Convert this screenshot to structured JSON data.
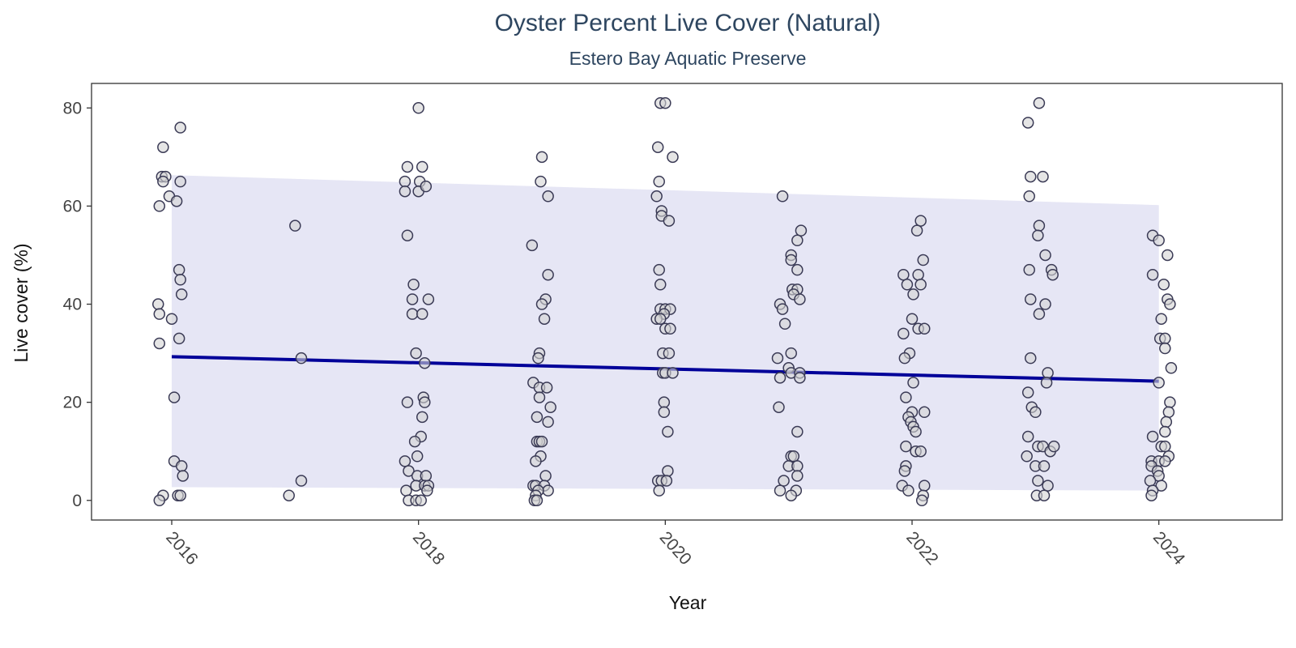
{
  "colors": {
    "band": "#e6e6f5",
    "trend_line": "#000099",
    "point_fill": "#d3d3d3",
    "point_stroke": "#3a3a55",
    "frame": "#333333",
    "title": "#2e4660"
  },
  "chart_data": {
    "type": "scatter",
    "title": "Oyster Percent Live Cover (Natural)",
    "subtitle": "Estero Bay Aquatic Preserve",
    "xlabel": "Year",
    "ylabel": "Live cover (%)",
    "xlim": [
      2015.35,
      2025.0
    ],
    "ylim": [
      -4,
      85
    ],
    "x_ticks": [
      2016,
      2018,
      2020,
      2022,
      2024
    ],
    "y_ticks": [
      0,
      20,
      40,
      60,
      80
    ],
    "grid": false,
    "legend": "none",
    "trend_line": {
      "x": [
        2016,
        2024
      ],
      "y": [
        29.3,
        24.3
      ]
    },
    "confidence_band": {
      "x": [
        2016,
        2024
      ],
      "upper": [
        66.3,
        60.2
      ],
      "lower": [
        2.7,
        2.0
      ]
    },
    "points": [
      {
        "x": 2015.93,
        "y": 72
      },
      {
        "x": 2015.92,
        "y": 66
      },
      {
        "x": 2015.95,
        "y": 66
      },
      {
        "x": 2015.93,
        "y": 65
      },
      {
        "x": 2015.98,
        "y": 62
      },
      {
        "x": 2016.04,
        "y": 61
      },
      {
        "x": 2015.9,
        "y": 60
      },
      {
        "x": 2016.07,
        "y": 65
      },
      {
        "x": 2016.07,
        "y": 76
      },
      {
        "x": 2016.06,
        "y": 47
      },
      {
        "x": 2016.07,
        "y": 45
      },
      {
        "x": 2016.08,
        "y": 42
      },
      {
        "x": 2015.89,
        "y": 40
      },
      {
        "x": 2015.9,
        "y": 38
      },
      {
        "x": 2016.0,
        "y": 37
      },
      {
        "x": 2016.06,
        "y": 33
      },
      {
        "x": 2015.9,
        "y": 32
      },
      {
        "x": 2016.02,
        "y": 21
      },
      {
        "x": 2016.02,
        "y": 8
      },
      {
        "x": 2016.08,
        "y": 7
      },
      {
        "x": 2016.09,
        "y": 5
      },
      {
        "x": 2016.05,
        "y": 1
      },
      {
        "x": 2016.07,
        "y": 1
      },
      {
        "x": 2015.93,
        "y": 1
      },
      {
        "x": 2015.9,
        "y": 0
      },
      {
        "x": 2017.0,
        "y": 56
      },
      {
        "x": 2017.05,
        "y": 29
      },
      {
        "x": 2017.05,
        "y": 4
      },
      {
        "x": 2016.95,
        "y": 1
      },
      {
        "x": 2018.0,
        "y": 80
      },
      {
        "x": 2017.91,
        "y": 68
      },
      {
        "x": 2018.03,
        "y": 68
      },
      {
        "x": 2017.89,
        "y": 65
      },
      {
        "x": 2018.01,
        "y": 65
      },
      {
        "x": 2017.89,
        "y": 63
      },
      {
        "x": 2018.0,
        "y": 63
      },
      {
        "x": 2018.06,
        "y": 64
      },
      {
        "x": 2017.91,
        "y": 54
      },
      {
        "x": 2017.96,
        "y": 44
      },
      {
        "x": 2017.95,
        "y": 41
      },
      {
        "x": 2018.08,
        "y": 41
      },
      {
        "x": 2017.95,
        "y": 38
      },
      {
        "x": 2018.03,
        "y": 38
      },
      {
        "x": 2017.98,
        "y": 30
      },
      {
        "x": 2018.05,
        "y": 28
      },
      {
        "x": 2018.04,
        "y": 21
      },
      {
        "x": 2017.91,
        "y": 20
      },
      {
        "x": 2018.05,
        "y": 20
      },
      {
        "x": 2018.03,
        "y": 17
      },
      {
        "x": 2018.02,
        "y": 13
      },
      {
        "x": 2017.97,
        "y": 12
      },
      {
        "x": 2017.99,
        "y": 9
      },
      {
        "x": 2017.89,
        "y": 8
      },
      {
        "x": 2017.92,
        "y": 6
      },
      {
        "x": 2017.99,
        "y": 5
      },
      {
        "x": 2018.06,
        "y": 5
      },
      {
        "x": 2017.98,
        "y": 3
      },
      {
        "x": 2018.05,
        "y": 3
      },
      {
        "x": 2018.08,
        "y": 3
      },
      {
        "x": 2017.9,
        "y": 2
      },
      {
        "x": 2018.07,
        "y": 2
      },
      {
        "x": 2017.92,
        "y": 0
      },
      {
        "x": 2017.98,
        "y": 0
      },
      {
        "x": 2018.02,
        "y": 0
      },
      {
        "x": 2019.0,
        "y": 70
      },
      {
        "x": 2018.99,
        "y": 65
      },
      {
        "x": 2019.05,
        "y": 62
      },
      {
        "x": 2018.92,
        "y": 52
      },
      {
        "x": 2019.05,
        "y": 46
      },
      {
        "x": 2019.03,
        "y": 41
      },
      {
        "x": 2019.0,
        "y": 40
      },
      {
        "x": 2019.02,
        "y": 37
      },
      {
        "x": 2018.98,
        "y": 30
      },
      {
        "x": 2018.97,
        "y": 29
      },
      {
        "x": 2018.93,
        "y": 24
      },
      {
        "x": 2018.98,
        "y": 23
      },
      {
        "x": 2019.04,
        "y": 23
      },
      {
        "x": 2018.98,
        "y": 21
      },
      {
        "x": 2019.07,
        "y": 19
      },
      {
        "x": 2018.96,
        "y": 17
      },
      {
        "x": 2019.05,
        "y": 16
      },
      {
        "x": 2018.96,
        "y": 12
      },
      {
        "x": 2018.98,
        "y": 12
      },
      {
        "x": 2019.0,
        "y": 12
      },
      {
        "x": 2018.99,
        "y": 9
      },
      {
        "x": 2018.95,
        "y": 8
      },
      {
        "x": 2019.03,
        "y": 5
      },
      {
        "x": 2018.93,
        "y": 3
      },
      {
        "x": 2018.95,
        "y": 3
      },
      {
        "x": 2019.02,
        "y": 3
      },
      {
        "x": 2019.05,
        "y": 2
      },
      {
        "x": 2018.97,
        "y": 2
      },
      {
        "x": 2018.95,
        "y": 1
      },
      {
        "x": 2018.94,
        "y": 0
      },
      {
        "x": 2018.96,
        "y": 0
      },
      {
        "x": 2019.96,
        "y": 81
      },
      {
        "x": 2020.0,
        "y": 81
      },
      {
        "x": 2019.94,
        "y": 72
      },
      {
        "x": 2020.06,
        "y": 70
      },
      {
        "x": 2019.95,
        "y": 65
      },
      {
        "x": 2019.93,
        "y": 62
      },
      {
        "x": 2019.97,
        "y": 59
      },
      {
        "x": 2019.97,
        "y": 58
      },
      {
        "x": 2020.03,
        "y": 57
      },
      {
        "x": 2019.95,
        "y": 47
      },
      {
        "x": 2019.96,
        "y": 44
      },
      {
        "x": 2019.96,
        "y": 39
      },
      {
        "x": 2020.0,
        "y": 39
      },
      {
        "x": 2020.04,
        "y": 39
      },
      {
        "x": 2019.99,
        "y": 38
      },
      {
        "x": 2019.93,
        "y": 37
      },
      {
        "x": 2019.96,
        "y": 37
      },
      {
        "x": 2020.0,
        "y": 35
      },
      {
        "x": 2020.04,
        "y": 35
      },
      {
        "x": 2019.98,
        "y": 30
      },
      {
        "x": 2020.03,
        "y": 30
      },
      {
        "x": 2019.98,
        "y": 26
      },
      {
        "x": 2020.0,
        "y": 26
      },
      {
        "x": 2020.06,
        "y": 26
      },
      {
        "x": 2019.99,
        "y": 20
      },
      {
        "x": 2019.99,
        "y": 18
      },
      {
        "x": 2020.02,
        "y": 14
      },
      {
        "x": 2020.02,
        "y": 6
      },
      {
        "x": 2019.94,
        "y": 4
      },
      {
        "x": 2019.97,
        "y": 4
      },
      {
        "x": 2020.01,
        "y": 4
      },
      {
        "x": 2019.95,
        "y": 2
      },
      {
        "x": 2020.95,
        "y": 62
      },
      {
        "x": 2021.1,
        "y": 55
      },
      {
        "x": 2021.07,
        "y": 53
      },
      {
        "x": 2021.02,
        "y": 50
      },
      {
        "x": 2021.02,
        "y": 49
      },
      {
        "x": 2021.07,
        "y": 47
      },
      {
        "x": 2021.03,
        "y": 43
      },
      {
        "x": 2021.07,
        "y": 43
      },
      {
        "x": 2021.04,
        "y": 42
      },
      {
        "x": 2021.09,
        "y": 41
      },
      {
        "x": 2020.93,
        "y": 40
      },
      {
        "x": 2020.95,
        "y": 39
      },
      {
        "x": 2020.97,
        "y": 36
      },
      {
        "x": 2021.02,
        "y": 30
      },
      {
        "x": 2020.91,
        "y": 29
      },
      {
        "x": 2021.0,
        "y": 27
      },
      {
        "x": 2021.02,
        "y": 26
      },
      {
        "x": 2021.09,
        "y": 26
      },
      {
        "x": 2020.93,
        "y": 25
      },
      {
        "x": 2021.09,
        "y": 25
      },
      {
        "x": 2020.92,
        "y": 19
      },
      {
        "x": 2021.07,
        "y": 14
      },
      {
        "x": 2021.02,
        "y": 9
      },
      {
        "x": 2021.04,
        "y": 9
      },
      {
        "x": 2021.0,
        "y": 7
      },
      {
        "x": 2021.07,
        "y": 7
      },
      {
        "x": 2021.07,
        "y": 5
      },
      {
        "x": 2020.96,
        "y": 4
      },
      {
        "x": 2020.93,
        "y": 2
      },
      {
        "x": 2021.06,
        "y": 2
      },
      {
        "x": 2021.02,
        "y": 1
      },
      {
        "x": 2022.07,
        "y": 57
      },
      {
        "x": 2022.04,
        "y": 55
      },
      {
        "x": 2022.09,
        "y": 49
      },
      {
        "x": 2021.93,
        "y": 46
      },
      {
        "x": 2022.05,
        "y": 46
      },
      {
        "x": 2021.96,
        "y": 44
      },
      {
        "x": 2022.07,
        "y": 44
      },
      {
        "x": 2022.01,
        "y": 42
      },
      {
        "x": 2022.0,
        "y": 37
      },
      {
        "x": 2022.05,
        "y": 35
      },
      {
        "x": 2022.1,
        "y": 35
      },
      {
        "x": 2021.93,
        "y": 34
      },
      {
        "x": 2021.98,
        "y": 30
      },
      {
        "x": 2021.94,
        "y": 29
      },
      {
        "x": 2022.01,
        "y": 24
      },
      {
        "x": 2021.95,
        "y": 21
      },
      {
        "x": 2022.0,
        "y": 18
      },
      {
        "x": 2022.1,
        "y": 18
      },
      {
        "x": 2021.97,
        "y": 17
      },
      {
        "x": 2021.99,
        "y": 16
      },
      {
        "x": 2022.01,
        "y": 15
      },
      {
        "x": 2022.03,
        "y": 14
      },
      {
        "x": 2021.95,
        "y": 11
      },
      {
        "x": 2022.03,
        "y": 10
      },
      {
        "x": 2022.07,
        "y": 10
      },
      {
        "x": 2021.95,
        "y": 7
      },
      {
        "x": 2021.94,
        "y": 6
      },
      {
        "x": 2021.92,
        "y": 3
      },
      {
        "x": 2022.1,
        "y": 3
      },
      {
        "x": 2021.97,
        "y": 2
      },
      {
        "x": 2022.09,
        "y": 1
      },
      {
        "x": 2022.08,
        "y": 0
      },
      {
        "x": 2023.03,
        "y": 81
      },
      {
        "x": 2022.94,
        "y": 77
      },
      {
        "x": 2022.96,
        "y": 66
      },
      {
        "x": 2023.06,
        "y": 66
      },
      {
        "x": 2022.95,
        "y": 62
      },
      {
        "x": 2023.03,
        "y": 56
      },
      {
        "x": 2023.02,
        "y": 54
      },
      {
        "x": 2023.08,
        "y": 50
      },
      {
        "x": 2022.95,
        "y": 47
      },
      {
        "x": 2023.13,
        "y": 47
      },
      {
        "x": 2023.14,
        "y": 46
      },
      {
        "x": 2022.96,
        "y": 41
      },
      {
        "x": 2023.08,
        "y": 40
      },
      {
        "x": 2023.03,
        "y": 38
      },
      {
        "x": 2022.96,
        "y": 29
      },
      {
        "x": 2023.1,
        "y": 26
      },
      {
        "x": 2023.09,
        "y": 24
      },
      {
        "x": 2022.94,
        "y": 22
      },
      {
        "x": 2022.97,
        "y": 19
      },
      {
        "x": 2023.0,
        "y": 18
      },
      {
        "x": 2022.94,
        "y": 13
      },
      {
        "x": 2023.02,
        "y": 11
      },
      {
        "x": 2023.06,
        "y": 11
      },
      {
        "x": 2023.12,
        "y": 10
      },
      {
        "x": 2023.15,
        "y": 11
      },
      {
        "x": 2022.93,
        "y": 9
      },
      {
        "x": 2023.0,
        "y": 7
      },
      {
        "x": 2023.07,
        "y": 7
      },
      {
        "x": 2023.02,
        "y": 4
      },
      {
        "x": 2023.1,
        "y": 3
      },
      {
        "x": 2023.01,
        "y": 1
      },
      {
        "x": 2023.07,
        "y": 1
      },
      {
        "x": 2023.95,
        "y": 54
      },
      {
        "x": 2024.0,
        "y": 53
      },
      {
        "x": 2024.07,
        "y": 50
      },
      {
        "x": 2023.95,
        "y": 46
      },
      {
        "x": 2024.04,
        "y": 44
      },
      {
        "x": 2024.07,
        "y": 41
      },
      {
        "x": 2024.09,
        "y": 40
      },
      {
        "x": 2024.02,
        "y": 37
      },
      {
        "x": 2024.01,
        "y": 33
      },
      {
        "x": 2024.05,
        "y": 33
      },
      {
        "x": 2024.05,
        "y": 31
      },
      {
        "x": 2024.1,
        "y": 27
      },
      {
        "x": 2024.0,
        "y": 24
      },
      {
        "x": 2024.09,
        "y": 20
      },
      {
        "x": 2024.08,
        "y": 18
      },
      {
        "x": 2024.06,
        "y": 16
      },
      {
        "x": 2024.05,
        "y": 14
      },
      {
        "x": 2023.95,
        "y": 13
      },
      {
        "x": 2024.02,
        "y": 11
      },
      {
        "x": 2024.05,
        "y": 11
      },
      {
        "x": 2024.08,
        "y": 9
      },
      {
        "x": 2023.94,
        "y": 8
      },
      {
        "x": 2024.0,
        "y": 8
      },
      {
        "x": 2024.05,
        "y": 8
      },
      {
        "x": 2023.94,
        "y": 7
      },
      {
        "x": 2023.99,
        "y": 6
      },
      {
        "x": 2024.0,
        "y": 5
      },
      {
        "x": 2023.93,
        "y": 4
      },
      {
        "x": 2024.02,
        "y": 3
      },
      {
        "x": 2023.95,
        "y": 2
      },
      {
        "x": 2023.94,
        "y": 1
      }
    ]
  }
}
